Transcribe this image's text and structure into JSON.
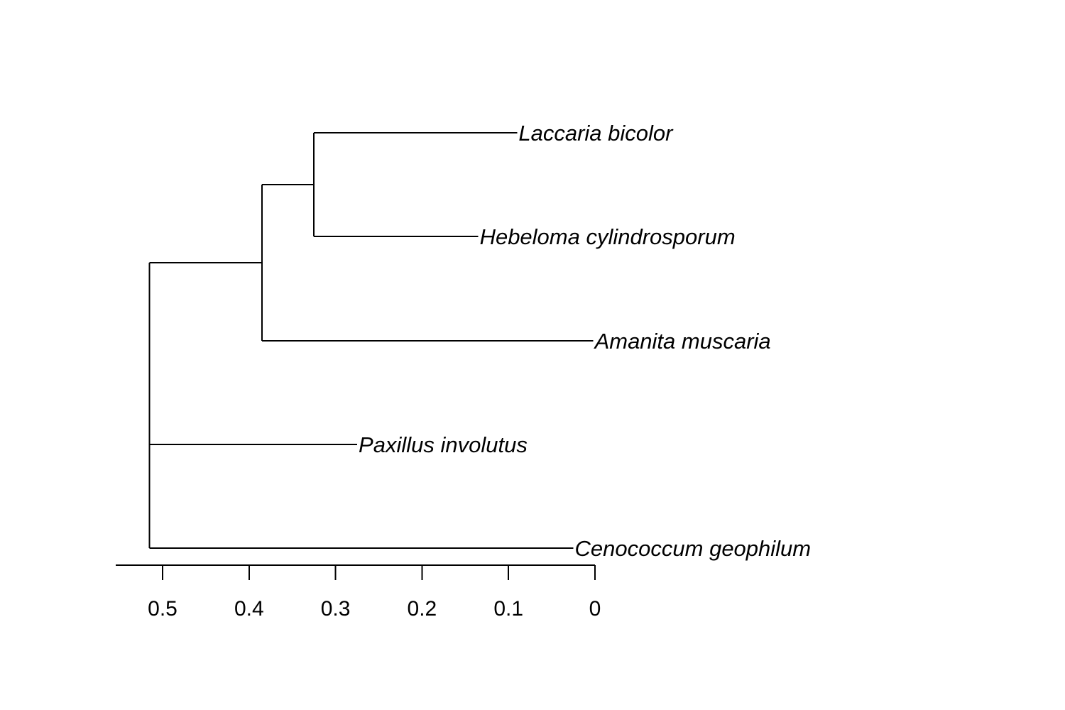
{
  "chart_data": {
    "type": "dendrogram",
    "taxa": [
      {
        "id": "laccaria",
        "label": "Laccaria bicolor",
        "tip_height": 0.09
      },
      {
        "id": "hebeloma",
        "label": "Hebeloma cylindrosporum",
        "tip_height": 0.135
      },
      {
        "id": "amanita",
        "label": "Amanita muscaria",
        "tip_height": 0.002
      },
      {
        "id": "paxillus",
        "label": "Paxillus involutus",
        "tip_height": 0.275
      },
      {
        "id": "cenococcum",
        "label": "Cenococcum geophilum",
        "tip_height": 0.025
      }
    ],
    "nodes": [
      {
        "id": "n1",
        "height": 0.325,
        "children": [
          "laccaria",
          "hebeloma"
        ]
      },
      {
        "id": "n2",
        "height": 0.385,
        "children": [
          "n1",
          "amanita"
        ]
      },
      {
        "id": "root",
        "height": 0.515,
        "children": [
          "n2",
          "paxillus",
          "cenococcum"
        ]
      }
    ],
    "axis": {
      "ticks": [
        0.5,
        0.4,
        0.3,
        0.2,
        0.1,
        0
      ],
      "tick_labels": [
        "0.5",
        "0.4",
        "0.3",
        "0.2",
        "0.1",
        "0"
      ],
      "range": [
        0.555,
        0
      ],
      "reversed": true
    }
  }
}
